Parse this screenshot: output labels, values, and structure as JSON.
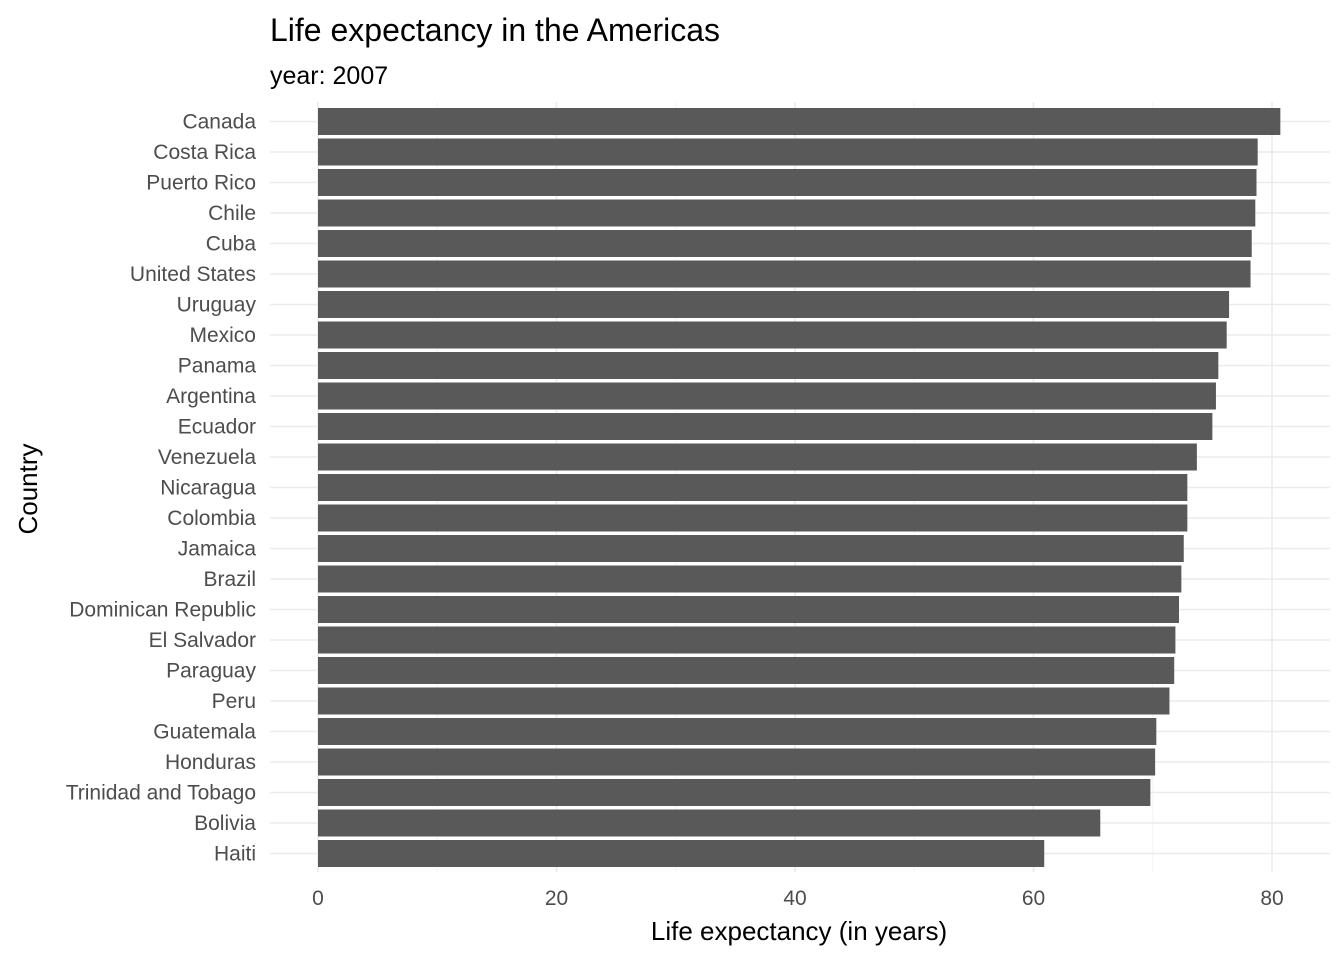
{
  "chart_data": {
    "type": "bar",
    "orientation": "horizontal",
    "title": "Life expectancy in the Americas",
    "subtitle": "year: 2007",
    "xlabel": "Life expectancy (in years)",
    "ylabel": "Country",
    "xlim": [
      0,
      84
    ],
    "xticks": [
      0,
      20,
      40,
      60,
      80
    ],
    "grid": true,
    "bar_color": "#595959",
    "categories": [
      "Canada",
      "Costa Rica",
      "Puerto Rico",
      "Chile",
      "Cuba",
      "United States",
      "Uruguay",
      "Mexico",
      "Panama",
      "Argentina",
      "Ecuador",
      "Venezuela",
      "Nicaragua",
      "Colombia",
      "Jamaica",
      "Brazil",
      "Dominican Republic",
      "El Salvador",
      "Paraguay",
      "Peru",
      "Guatemala",
      "Honduras",
      "Trinidad and Tobago",
      "Bolivia",
      "Haiti"
    ],
    "values": [
      80.7,
      78.8,
      78.7,
      78.6,
      78.3,
      78.2,
      76.4,
      76.2,
      75.5,
      75.3,
      75.0,
      73.7,
      72.9,
      72.9,
      72.6,
      72.4,
      72.2,
      71.9,
      71.8,
      71.4,
      70.3,
      70.2,
      69.8,
      65.6,
      60.9
    ]
  }
}
